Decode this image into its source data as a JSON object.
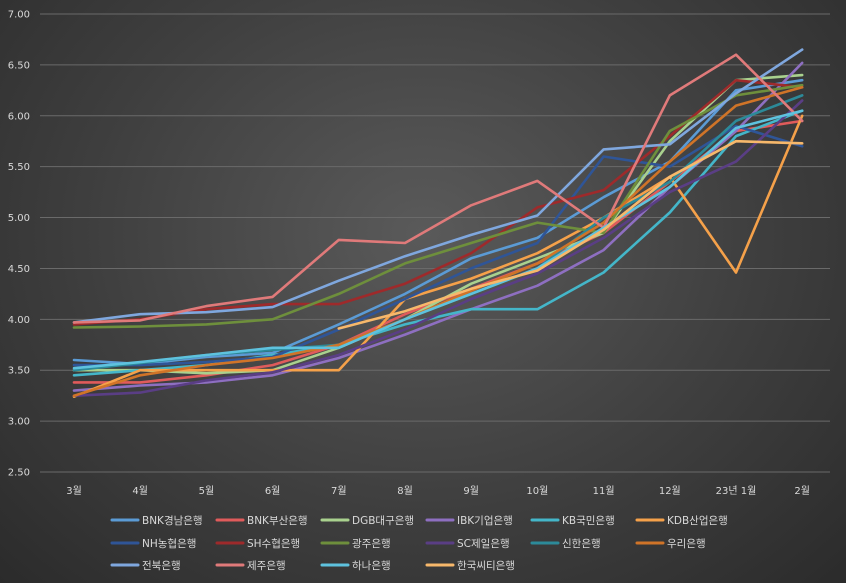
{
  "chart_data": {
    "type": "line",
    "title": "",
    "xlabel": "",
    "ylabel": "",
    "ylim": [
      2.5,
      7.0
    ],
    "yticks": [
      "2.50",
      "3.00",
      "3.50",
      "4.00",
      "4.50",
      "5.00",
      "5.50",
      "6.00",
      "6.50",
      "7.00"
    ],
    "categories": [
      "3월",
      "4월",
      "5월",
      "6월",
      "7월",
      "8월",
      "9월",
      "10월",
      "11월",
      "12월",
      "23년 1월",
      "2월"
    ],
    "grid": true,
    "legend_position": "bottom",
    "series": [
      {
        "name": "BNK경남은행",
        "color": "#5b9bd5",
        "values": [
          3.6,
          3.56,
          3.63,
          3.67,
          3.95,
          4.25,
          4.6,
          4.8,
          5.2,
          5.55,
          6.25,
          6.35
        ]
      },
      {
        "name": "BNK부산은행",
        "color": "#e05b5b",
        "values": [
          3.38,
          3.38,
          3.45,
          3.55,
          3.75,
          4.05,
          4.3,
          4.55,
          4.85,
          5.35,
          5.85,
          5.95
        ]
      },
      {
        "name": "DGB대구은행",
        "color": "#a9d18e",
        "values": [
          3.5,
          3.5,
          3.47,
          3.5,
          3.72,
          4.0,
          4.35,
          4.6,
          4.85,
          5.75,
          6.35,
          6.4
        ]
      },
      {
        "name": "IBK기업은행",
        "color": "#8e6fc1",
        "values": [
          3.3,
          3.35,
          3.38,
          3.45,
          3.62,
          3.85,
          4.1,
          4.33,
          4.68,
          5.3,
          5.85,
          6.52
        ]
      },
      {
        "name": "KB국민은행",
        "color": "#44b6c9",
        "values": [
          3.45,
          3.5,
          3.55,
          3.65,
          3.75,
          3.95,
          4.1,
          4.1,
          4.46,
          5.05,
          5.8,
          6.05
        ]
      },
      {
        "name": "KDB산업은행",
        "color": "#f5a14a",
        "values": [
          3.24,
          3.5,
          3.5,
          3.5,
          3.5,
          4.2,
          4.4,
          4.65,
          5.0,
          5.4,
          4.46,
          6.0
        ]
      },
      {
        "name": "NH농협은행",
        "color": "#2f5597",
        "values": [
          3.55,
          3.55,
          3.58,
          3.63,
          3.9,
          4.2,
          4.5,
          4.75,
          5.6,
          5.5,
          5.9,
          5.7
        ]
      },
      {
        "name": "SH수협은행",
        "color": "#9e2a2b",
        "values": [
          3.95,
          4.0,
          4.1,
          4.15,
          4.15,
          4.35,
          4.65,
          5.1,
          5.27,
          5.8,
          6.35,
          6.28
        ]
      },
      {
        "name": "광주은행",
        "color": "#6e8f3c",
        "values": [
          3.92,
          3.93,
          3.95,
          4.0,
          4.25,
          4.55,
          4.75,
          4.95,
          4.85,
          5.85,
          6.2,
          6.3
        ]
      },
      {
        "name": "SC제일은행",
        "color": "#5a3e85",
        "values": [
          3.25,
          3.28,
          3.4,
          3.48,
          3.65,
          3.9,
          4.2,
          4.45,
          4.8,
          5.25,
          5.55,
          6.15
        ]
      },
      {
        "name": "신한은행",
        "color": "#2c8a99",
        "values": [
          3.5,
          3.57,
          3.65,
          3.7,
          3.75,
          4.0,
          4.25,
          4.5,
          5.0,
          5.35,
          5.95,
          6.2
        ]
      },
      {
        "name": "우리은행",
        "color": "#d07428",
        "values": [
          3.25,
          3.45,
          3.55,
          3.62,
          3.75,
          4.0,
          4.28,
          4.55,
          4.95,
          5.55,
          6.1,
          6.28
        ]
      },
      {
        "name": "전북은행",
        "color": "#7fa7de",
        "values": [
          3.97,
          4.05,
          4.07,
          4.12,
          4.38,
          4.62,
          4.83,
          5.02,
          5.67,
          5.72,
          6.22,
          6.65
        ]
      },
      {
        "name": "제주은행",
        "color": "#e07a7a",
        "values": [
          3.97,
          3.99,
          4.13,
          4.22,
          4.78,
          4.75,
          5.12,
          5.36,
          4.9,
          6.2,
          6.6,
          5.95
        ]
      },
      {
        "name": "하나은행",
        "color": "#5ec2de",
        "values": [
          3.52,
          3.58,
          3.65,
          3.72,
          3.72,
          4.0,
          4.25,
          4.5,
          4.9,
          5.3,
          5.88,
          6.05
        ]
      },
      {
        "name": "한국씨티은행",
        "color": "#f7b86b",
        "values": [
          null,
          null,
          null,
          null,
          3.91,
          4.08,
          4.3,
          4.48,
          4.88,
          5.4,
          5.75,
          5.73
        ]
      }
    ]
  }
}
